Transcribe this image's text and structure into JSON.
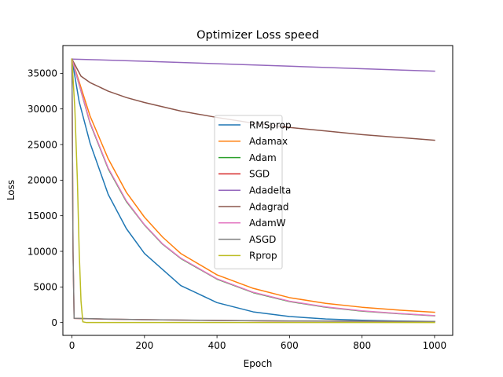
{
  "chart_data": {
    "type": "line",
    "title": "Optimizer Loss speed",
    "xlabel": "Epoch",
    "ylabel": "Loss",
    "xlim": [
      -25,
      1050
    ],
    "ylim": [
      -1800,
      38900
    ],
    "xticks": [
      0,
      200,
      400,
      600,
      800,
      1000
    ],
    "yticks": [
      0,
      5000,
      10000,
      15000,
      20000,
      25000,
      30000,
      35000
    ],
    "grid": false,
    "legend_position": "center",
    "series": [
      {
        "name": "RMSprop",
        "color": "#1f77b4",
        "x": [
          0,
          20,
          50,
          100,
          150,
          200,
          300,
          400,
          500,
          600,
          700,
          800,
          900,
          1000
        ],
        "y": [
          37000,
          31000,
          25200,
          18000,
          13200,
          9700,
          5200,
          2800,
          1500,
          850,
          500,
          320,
          220,
          150
        ]
      },
      {
        "name": "Adamax",
        "color": "#ff7f0e",
        "x": [
          0,
          50,
          100,
          150,
          200,
          250,
          300,
          400,
          500,
          600,
          700,
          800,
          900,
          1000
        ],
        "y": [
          37000,
          29000,
          23000,
          18300,
          14800,
          12000,
          9700,
          6700,
          4800,
          3500,
          2700,
          2150,
          1750,
          1450
        ]
      },
      {
        "name": "Adam",
        "color": "#2ca02c",
        "x": [
          0,
          50,
          100,
          150,
          200,
          250,
          300,
          400,
          500,
          600,
          700,
          800,
          900,
          1000
        ],
        "y": [
          37000,
          28000,
          21600,
          17000,
          13700,
          11000,
          9000,
          6100,
          4200,
          2950,
          2150,
          1600,
          1250,
          950
        ]
      },
      {
        "name": "SGD",
        "color": "#d62728",
        "x": [
          0,
          3,
          6,
          100,
          200,
          400,
          600,
          800,
          1000
        ],
        "y": [
          37000,
          10000,
          580,
          480,
          400,
          290,
          220,
          180,
          150
        ]
      },
      {
        "name": "Adadelta",
        "color": "#9467bd",
        "x": [
          0,
          200,
          400,
          600,
          800,
          1000
        ],
        "y": [
          37000,
          36700,
          36350,
          36000,
          35650,
          35300
        ]
      },
      {
        "name": "Adagrad",
        "color": "#8c564b",
        "x": [
          0,
          25,
          50,
          100,
          150,
          200,
          300,
          400,
          500,
          600,
          700,
          800,
          900,
          1000
        ],
        "y": [
          37000,
          34600,
          33700,
          32500,
          31600,
          30900,
          29700,
          28800,
          28000,
          27400,
          26900,
          26400,
          26000,
          25600
        ]
      },
      {
        "name": "AdamW",
        "color": "#e377c2",
        "x": [
          0,
          50,
          100,
          150,
          200,
          250,
          300,
          400,
          500,
          600,
          700,
          800,
          900,
          1000
        ],
        "y": [
          37000,
          28100,
          21700,
          17100,
          13750,
          11050,
          9050,
          6150,
          4250,
          3000,
          2200,
          1650,
          1280,
          980
        ]
      },
      {
        "name": "ASGD",
        "color": "#7f7f7f",
        "x": [
          0,
          3,
          6,
          100,
          200,
          400,
          600,
          800,
          1000
        ],
        "y": [
          37000,
          10000,
          600,
          490,
          410,
          300,
          230,
          190,
          160
        ]
      },
      {
        "name": "Rprop",
        "color": "#bcbd22",
        "x": [
          0,
          8,
          15,
          20,
          25,
          30,
          40,
          100,
          200,
          400,
          600,
          800,
          1000
        ],
        "y": [
          37000,
          30000,
          20000,
          10000,
          3000,
          100,
          0,
          0,
          0,
          0,
          0,
          0,
          0
        ]
      }
    ]
  }
}
